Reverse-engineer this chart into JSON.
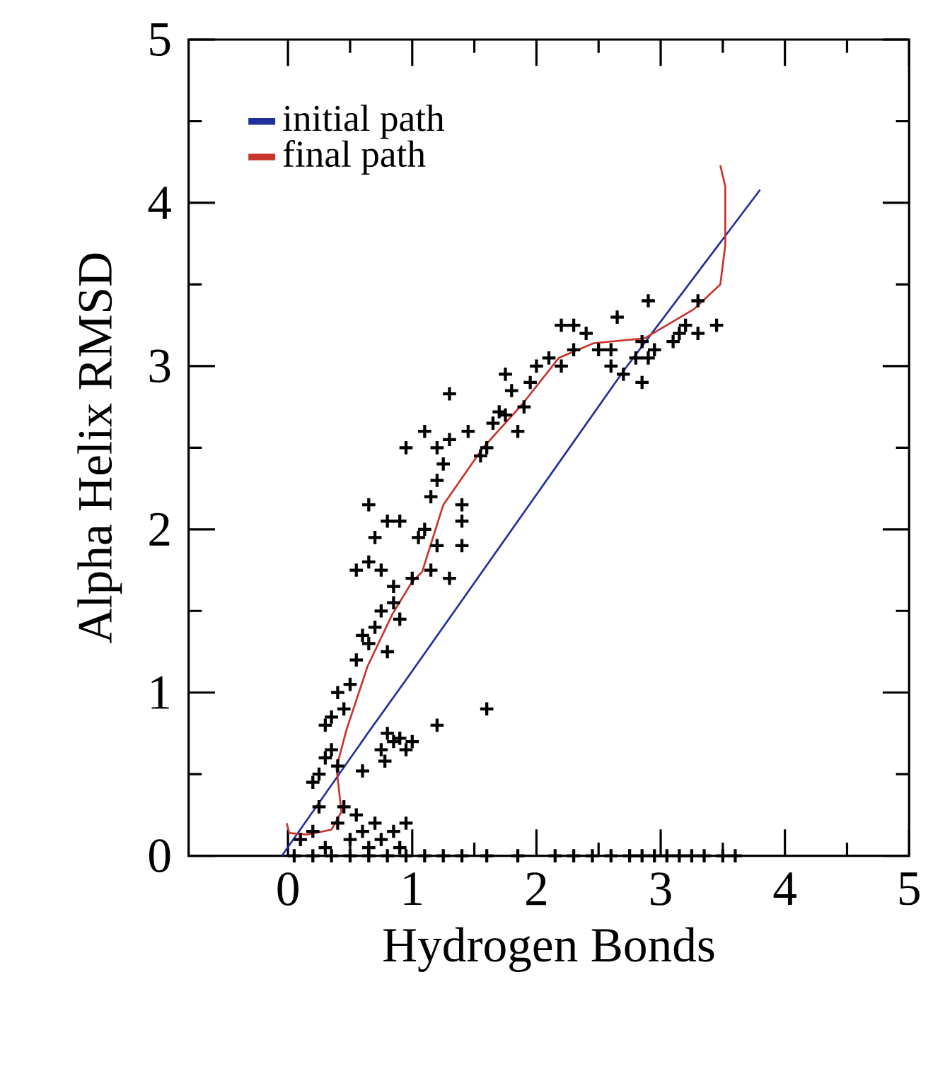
{
  "chart_data": {
    "type": "scatter",
    "xlabel": "Hydrogen Bonds",
    "ylabel": "Alpha Helix RMSD",
    "xlim": [
      -0.8,
      5
    ],
    "ylim": [
      0,
      5
    ],
    "xticks": [
      0,
      1,
      2,
      3,
      4,
      5
    ],
    "yticks": [
      0,
      1,
      2,
      3,
      4,
      5
    ],
    "legend": "top left",
    "series": [
      {
        "marker": "cross",
        "color": "#000000",
        "x": [
          0.05,
          0.2,
          0.35,
          0.5,
          0.65,
          0.8,
          0.95,
          1.1,
          1.25,
          1.4,
          1.6,
          1.85,
          2.15,
          2.3,
          2.45,
          2.6,
          2.75,
          2.85,
          2.95,
          3.05,
          3.15,
          3.25,
          3.35,
          3.5,
          3.6,
          0.1,
          0.2,
          0.3,
          0.4,
          0.5,
          0.55,
          0.6,
          0.7,
          0.75,
          0.85,
          0.9,
          0.95,
          0.65,
          0.45,
          0.25,
          0.2,
          0.25,
          0.3,
          0.35,
          0.4,
          0.6,
          0.8,
          0.85,
          0.9,
          0.95,
          1.0,
          0.75,
          0.78,
          1.2,
          1.6,
          0.3,
          0.35,
          0.45,
          0.4,
          0.5,
          0.55,
          0.65,
          0.6,
          0.7,
          0.75,
          0.85,
          0.9,
          0.8,
          0.55,
          0.65,
          0.75,
          0.85,
          1.0,
          1.15,
          1.3,
          0.7,
          0.8,
          0.9,
          0.65,
          1.05,
          1.1,
          1.2,
          1.4,
          1.4,
          1.4,
          1.15,
          1.2,
          1.25,
          1.1,
          1.2,
          0.95,
          1.3,
          1.45,
          1.55,
          1.6,
          1.65,
          1.75,
          1.85,
          1.9,
          1.8,
          1.7,
          1.3,
          1.75,
          1.95,
          2.0,
          2.1,
          2.2,
          2.3,
          2.2,
          2.3,
          2.4,
          2.6,
          2.7,
          2.65,
          2.8,
          2.9,
          2.95,
          2.85,
          3.1,
          3.2,
          3.3,
          3.15,
          2.9,
          3.3,
          3.45,
          2.85,
          2.5,
          2.6
        ],
        "values": [
          0,
          0,
          0,
          0,
          0,
          0,
          0,
          0,
          0,
          0,
          0,
          0,
          0,
          0,
          0,
          0,
          0,
          0,
          0,
          0,
          0,
          0,
          0,
          0,
          0,
          0.1,
          0.15,
          0.05,
          0.2,
          0.1,
          0.25,
          0.15,
          0.2,
          0.1,
          0.15,
          0.05,
          0.2,
          0.05,
          0.3,
          0.3,
          0.45,
          0.5,
          0.6,
          0.65,
          0.55,
          0.52,
          0.75,
          0.7,
          0.72,
          0.65,
          0.7,
          0.65,
          0.58,
          0.8,
          0.9,
          0.8,
          0.85,
          0.9,
          1.0,
          1.05,
          1.2,
          1.3,
          1.35,
          1.4,
          1.5,
          1.55,
          1.45,
          1.25,
          1.75,
          1.8,
          1.75,
          1.65,
          1.7,
          1.75,
          1.7,
          1.95,
          2.05,
          2.05,
          2.15,
          1.95,
          2.0,
          1.9,
          2.05,
          1.9,
          2.15,
          2.2,
          2.3,
          2.4,
          2.6,
          2.5,
          2.5,
          2.55,
          2.6,
          2.45,
          2.5,
          2.65,
          2.7,
          2.6,
          2.75,
          2.85,
          2.72,
          2.83,
          2.95,
          2.9,
          3.0,
          3.05,
          3.0,
          3.1,
          3.25,
          3.25,
          3.2,
          3.1,
          2.95,
          3.3,
          3.05,
          3.05,
          3.1,
          3.15,
          3.15,
          3.25,
          3.2,
          3.2,
          3.4,
          3.4,
          3.25,
          2.9,
          3.1,
          3.0
        ]
      },
      {
        "type": "line",
        "name": "initial path",
        "color": "#1f2f9e",
        "x": [
          -0.05,
          0.66,
          0.98,
          2.71,
          3.8
        ],
        "values": [
          0.0,
          0.77,
          1.11,
          2.98,
          4.08
        ]
      },
      {
        "type": "line",
        "name": "final path",
        "color": "#c8342c",
        "x": [
          -0.01,
          0.01,
          0.15,
          0.35,
          0.43,
          0.39,
          0.47,
          0.64,
          0.84,
          1.0,
          1.08,
          1.25,
          1.57,
          1.89,
          2.18,
          2.46,
          2.87,
          3.27,
          3.48,
          3.52,
          3.52,
          3.48
        ],
        "values": [
          0.2,
          0.14,
          0.13,
          0.16,
          0.27,
          0.54,
          0.77,
          1.16,
          1.48,
          1.68,
          1.74,
          2.15,
          2.5,
          2.77,
          3.05,
          3.14,
          3.17,
          3.35,
          3.5,
          3.74,
          4.1,
          4.23
        ]
      }
    ]
  }
}
